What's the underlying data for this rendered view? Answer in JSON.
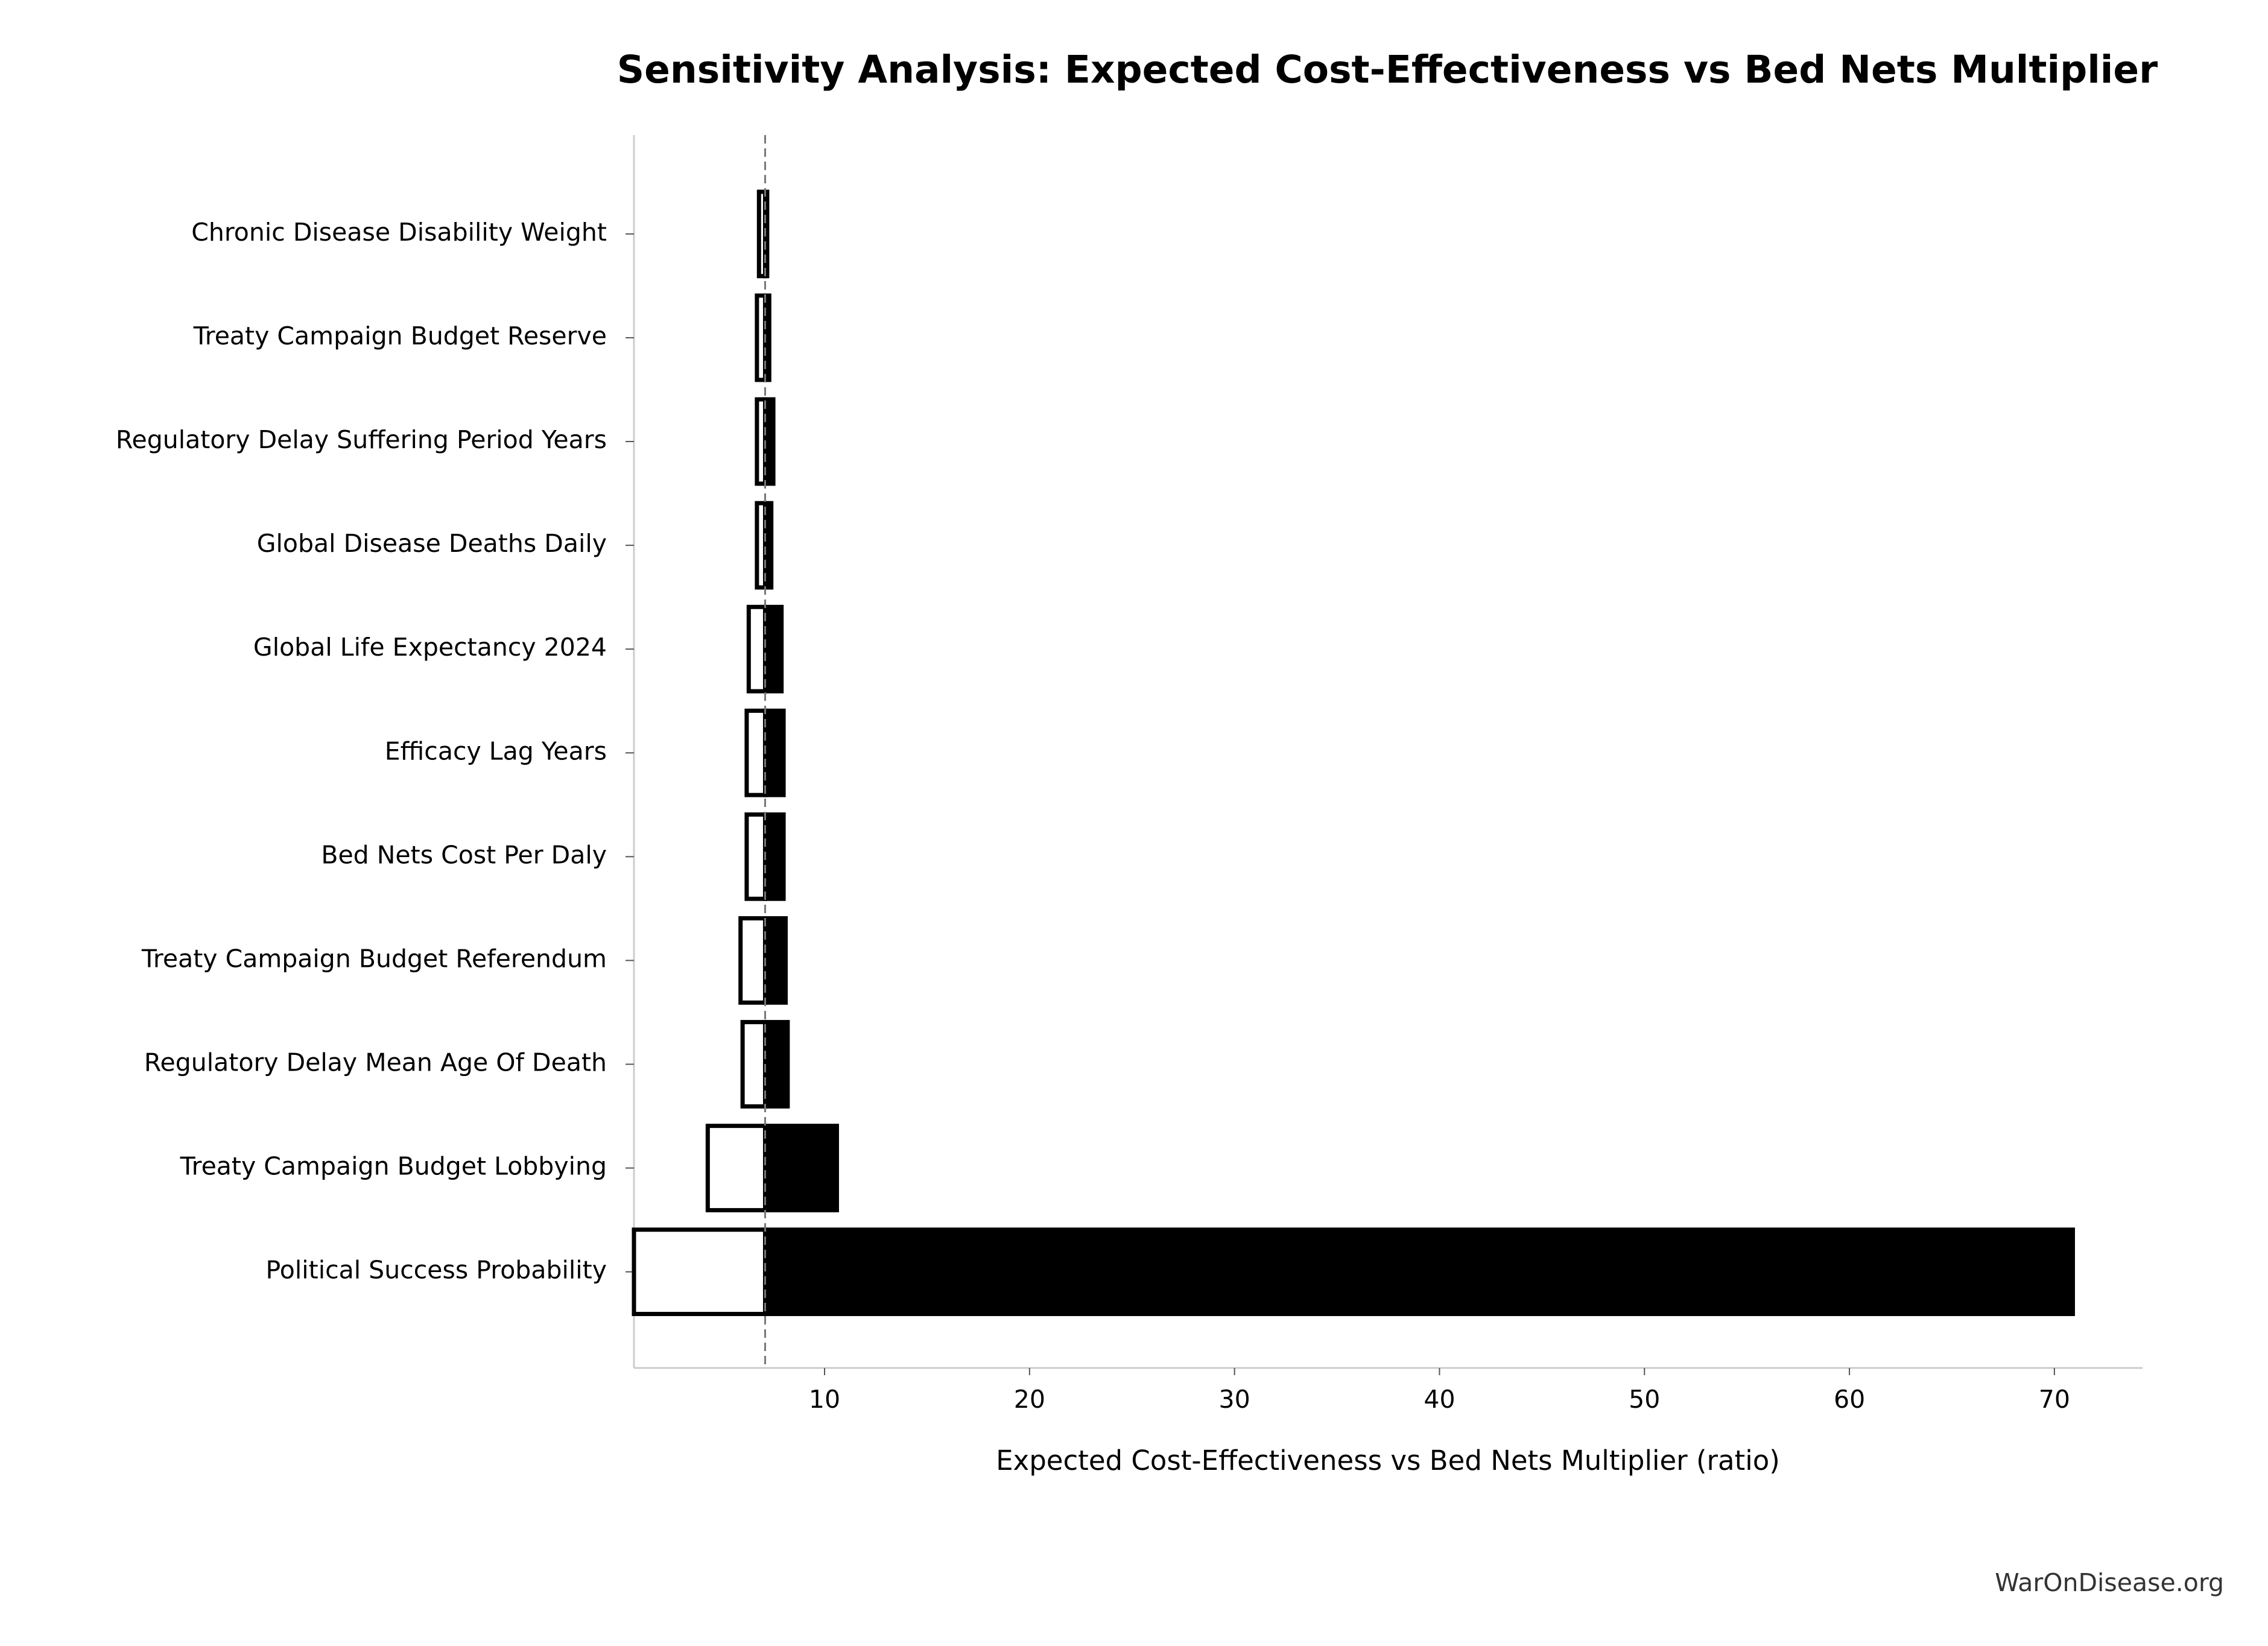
{
  "chart_data": {
    "type": "tornado",
    "title": "Sensitivity Analysis: Expected Cost-Effectiveness vs Bed Nets Multiplier",
    "x_label": "Expected Cost-Effectiveness vs Bed Nets Multiplier (ratio)",
    "watermark": "WarOnDisease.org",
    "categories": [
      "Chronic Disease Disability Weight",
      "Treaty Campaign Budget Reserve",
      "Regulatory Delay Suffering Period Years",
      "Global Disease Deaths Daily",
      "Global Life Expectancy 2024",
      "Efficacy Lag Years",
      "Bed Nets Cost Per Daly",
      "Treaty Campaign Budget Referendum",
      "Regulatory Delay Mean Age Of Death",
      "Treaty Campaign Budget Lobbying",
      "Political Success Probability"
    ],
    "baseline": 7.1,
    "low_values": [
      6.8,
      6.7,
      6.7,
      6.7,
      6.3,
      6.2,
      6.2,
      5.9,
      6.0,
      4.3,
      0.7
    ],
    "high_values": [
      7.2,
      7.3,
      7.5,
      7.4,
      7.9,
      8.0,
      8.0,
      8.1,
      8.2,
      10.6,
      70.9
    ],
    "low_color": "#ffffff",
    "high_color": "#000000",
    "xlim": [
      0.7,
      74.3
    ],
    "xticks": [
      10,
      20,
      30,
      40,
      50,
      60,
      70
    ]
  }
}
